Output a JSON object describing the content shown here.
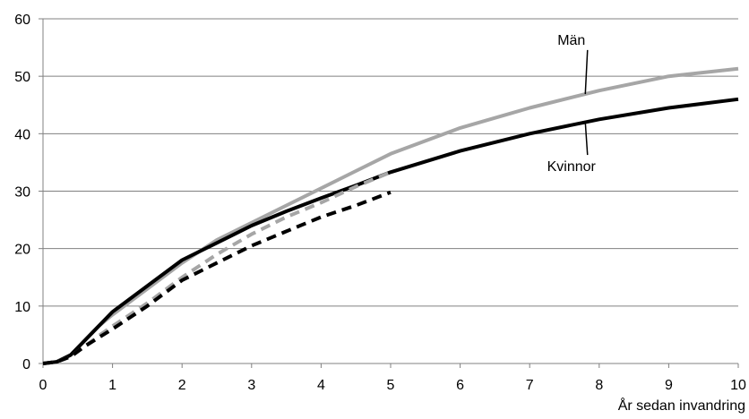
{
  "chart_data": {
    "type": "line",
    "title": "",
    "xlabel": "År sedan invandring",
    "ylabel": "",
    "xlim": [
      0,
      10
    ],
    "ylim": [
      0,
      60
    ],
    "x_ticks": [
      "0",
      "1",
      "2",
      "3",
      "4",
      "5",
      "6",
      "7",
      "8",
      "9",
      "10"
    ],
    "y_ticks": [
      "0",
      "10",
      "20",
      "30",
      "40",
      "50",
      "60"
    ],
    "grid": "horizontal",
    "series": [
      {
        "name": "Män",
        "color": "#a6a6a6",
        "dash": "solid",
        "points": [
          [
            0,
            0
          ],
          [
            0.2,
            0.3
          ],
          [
            0.4,
            1.5
          ],
          [
            0.6,
            4
          ],
          [
            0.8,
            6.5
          ],
          [
            1,
            8.5
          ],
          [
            1.5,
            13
          ],
          [
            2,
            17.5
          ],
          [
            2.5,
            21.5
          ],
          [
            3,
            24.5
          ],
          [
            3.5,
            27.5
          ],
          [
            4,
            30.5
          ],
          [
            4.5,
            33.5
          ],
          [
            5,
            36.5
          ],
          [
            6,
            41
          ],
          [
            7,
            44.5
          ],
          [
            8,
            47.5
          ],
          [
            9,
            50
          ],
          [
            10,
            51.3
          ]
        ]
      },
      {
        "name": "Kvinnor",
        "color": "#000000",
        "dash": "solid",
        "points": [
          [
            0,
            0
          ],
          [
            0.2,
            0.3
          ],
          [
            0.4,
            1.5
          ],
          [
            0.6,
            4
          ],
          [
            0.8,
            6.5
          ],
          [
            1,
            9
          ],
          [
            1.5,
            13.5
          ],
          [
            2,
            18
          ],
          [
            2.5,
            21
          ],
          [
            3,
            24
          ],
          [
            3.5,
            26.5
          ],
          [
            4,
            28.8
          ],
          [
            4.5,
            31
          ],
          [
            5,
            33.3
          ],
          [
            6,
            37
          ],
          [
            7,
            40
          ],
          [
            8,
            42.5
          ],
          [
            9,
            44.5
          ],
          [
            10,
            46
          ]
        ]
      },
      {
        "name": "",
        "color": "#a6a6a6",
        "dash": "dashed",
        "points": [
          [
            0,
            0
          ],
          [
            0.2,
            0.3
          ],
          [
            0.4,
            1.2
          ],
          [
            0.6,
            3
          ],
          [
            0.8,
            4.8
          ],
          [
            1,
            6.5
          ],
          [
            1.5,
            10.5
          ],
          [
            2,
            15
          ],
          [
            2.5,
            19
          ],
          [
            3,
            22.5
          ],
          [
            3.5,
            25.5
          ],
          [
            4,
            28
          ],
          [
            4.5,
            30.8
          ],
          [
            5,
            33.3
          ]
        ]
      },
      {
        "name": "",
        "color": "#000000",
        "dash": "dashed",
        "points": [
          [
            0,
            0
          ],
          [
            0.2,
            0.3
          ],
          [
            0.4,
            1.2
          ],
          [
            0.6,
            3
          ],
          [
            0.8,
            4.5
          ],
          [
            1,
            6
          ],
          [
            1.5,
            10
          ],
          [
            2,
            14.5
          ],
          [
            2.5,
            17.5
          ],
          [
            3,
            20.5
          ],
          [
            3.5,
            23
          ],
          [
            4,
            25.5
          ],
          [
            4.5,
            27.5
          ],
          [
            5,
            29.8
          ]
        ]
      }
    ],
    "annotations": [
      {
        "text": "Män",
        "series": "Män",
        "at_x": 7.8,
        "label_x": 7.6,
        "label_y": 55.5
      },
      {
        "text": "Kvinnor",
        "series": "Kvinnor",
        "at_x": 7.8,
        "label_x": 7.6,
        "label_y": 33.5
      }
    ]
  }
}
